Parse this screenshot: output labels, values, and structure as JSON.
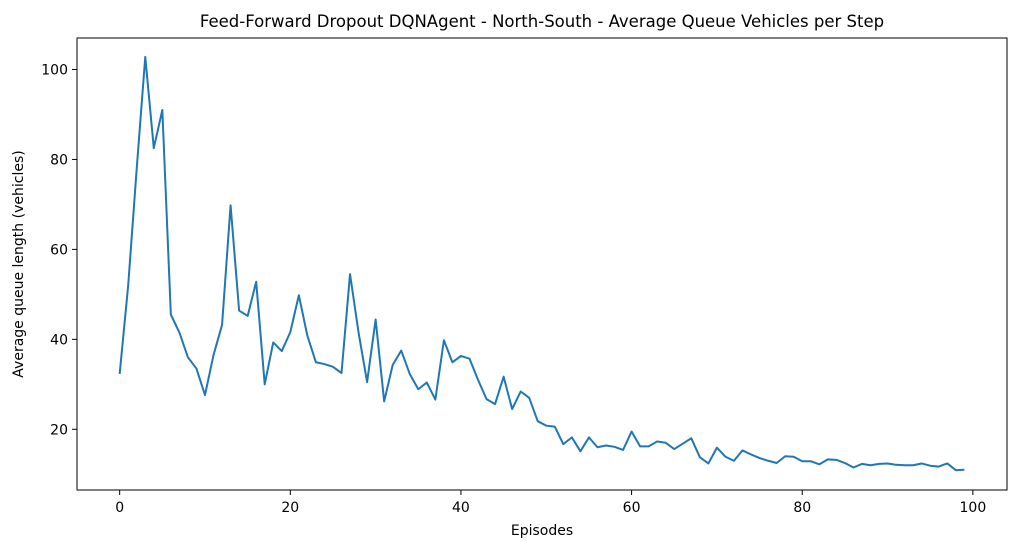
{
  "chart_data": {
    "type": "line",
    "title": "Feed-Forward Dropout DQNAgent - North-South - Average Queue Vehicles per Step",
    "xlabel": "Episodes",
    "ylabel": "Average queue length (vehicles)",
    "xlim": [
      -5,
      104
    ],
    "ylim": [
      6.5,
      107
    ],
    "xticks": [
      0,
      20,
      40,
      60,
      80,
      100
    ],
    "yticks": [
      20,
      40,
      60,
      80,
      100
    ],
    "grid": false,
    "line_color": "#1f77b4",
    "series": [
      {
        "x": [
          0,
          1,
          2,
          3,
          4,
          5,
          6,
          7,
          8,
          9,
          10,
          11,
          12,
          13,
          14,
          15,
          16,
          17,
          18,
          19,
          20,
          21,
          22,
          23,
          24,
          25,
          26,
          27,
          28,
          29,
          30,
          31,
          32,
          33,
          34,
          35,
          36,
          37,
          38,
          39,
          40,
          41,
          42,
          43,
          44,
          45,
          46,
          47,
          48,
          49,
          50,
          51,
          52,
          53,
          54,
          55,
          56,
          57,
          58,
          59,
          60,
          61,
          62,
          63,
          64,
          65,
          66,
          67,
          68,
          69,
          70,
          71,
          72,
          73,
          74,
          75,
          76,
          77,
          78,
          79,
          80,
          81,
          82,
          83,
          84,
          85,
          86,
          87,
          88,
          89,
          90,
          91,
          92,
          93,
          94,
          95,
          96,
          97,
          98,
          99
        ],
        "values": [
          32.3,
          52.0,
          78.0,
          102.8,
          82.5,
          91.0,
          45.5,
          41.5,
          36.0,
          33.5,
          27.6,
          36.5,
          43.2,
          69.8,
          46.4,
          45.2,
          52.8,
          30.0,
          39.3,
          37.4,
          41.6,
          49.8,
          40.8,
          34.9,
          34.5,
          33.9,
          32.5,
          54.5,
          41.5,
          30.5,
          44.4,
          26.2,
          34.3,
          37.5,
          32.3,
          28.9,
          30.4,
          26.6,
          39.8,
          34.9,
          36.3,
          35.7,
          31.0,
          26.7,
          25.6,
          31.7,
          24.5,
          28.4,
          27.0,
          21.8,
          20.8,
          20.6,
          16.7,
          18.2,
          15.1,
          18.2,
          16.0,
          16.4,
          16.1,
          15.4,
          19.5,
          16.2,
          16.2,
          17.3,
          17.0,
          15.6,
          16.8,
          18.0,
          13.8,
          12.4,
          15.9,
          13.9,
          13.0,
          15.3,
          14.4,
          13.6,
          13.0,
          12.5,
          14.0,
          13.9,
          12.9,
          12.9,
          12.2,
          13.3,
          13.2,
          12.5,
          11.5,
          12.3,
          12.0,
          12.3,
          12.4,
          12.1,
          12.0,
          12.0,
          12.4,
          11.9,
          11.7,
          12.4,
          10.9,
          11.0
        ]
      }
    ]
  }
}
